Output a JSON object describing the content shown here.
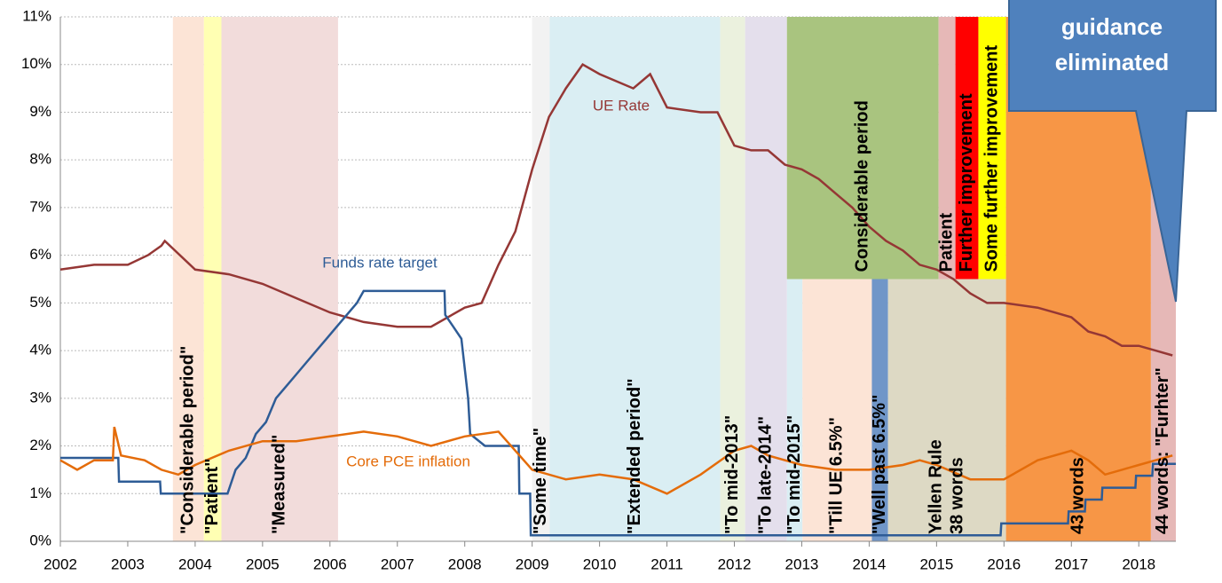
{
  "chart_data": {
    "type": "line",
    "xlim": [
      2002,
      2018.55
    ],
    "xticks": [
      2002,
      2003,
      2004,
      2005,
      2006,
      2007,
      2008,
      2009,
      2010,
      2011,
      2012,
      2013,
      2014,
      2015,
      2016,
      2017,
      2018
    ],
    "ylim": [
      0,
      11
    ],
    "yticks": [
      {
        "value": 0,
        "label": "0%"
      },
      {
        "value": 1,
        "label": "1%"
      },
      {
        "value": 2,
        "label": "2%"
      },
      {
        "value": 3,
        "label": "3%"
      },
      {
        "value": 4,
        "label": "4%"
      },
      {
        "value": 5,
        "label": "5%"
      },
      {
        "value": 6,
        "label": "6%"
      },
      {
        "value": 7,
        "label": "7%"
      },
      {
        "value": 8,
        "label": "8%"
      },
      {
        "value": 9,
        "label": "9%"
      },
      {
        "value": 10,
        "label": "10%"
      },
      {
        "value": 11,
        "label": "11%"
      }
    ],
    "grid": true,
    "series": [
      {
        "name": "UE Rate",
        "color": "#953735",
        "x": [
          2002,
          2002.5,
          2003,
          2003.3,
          2003.5,
          2003.55,
          2004,
          2004.5,
          2005,
          2005.5,
          2006,
          2006.5,
          2007,
          2007.5,
          2008,
          2008.25,
          2008.5,
          2008.75,
          2009,
          2009.25,
          2009.5,
          2009.75,
          2010,
          2010.5,
          2010.75,
          2011,
          2011.5,
          2011.75,
          2012,
          2012.25,
          2012.5,
          2012.75,
          2013,
          2013.25,
          2013.5,
          2013.75,
          2014,
          2014.25,
          2014.5,
          2014.75,
          2015,
          2015.25,
          2015.5,
          2015.75,
          2016,
          2016.5,
          2016.75,
          2017,
          2017.25,
          2017.5,
          2017.75,
          2018,
          2018.25,
          2018.5
        ],
        "values": [
          5.7,
          5.8,
          5.8,
          6.0,
          6.2,
          6.3,
          5.7,
          5.6,
          5.4,
          5.1,
          4.8,
          4.6,
          4.5,
          4.5,
          4.9,
          5.0,
          5.8,
          6.5,
          7.8,
          8.9,
          9.5,
          10.0,
          9.8,
          9.5,
          9.8,
          9.1,
          9.0,
          9.0,
          8.3,
          8.2,
          8.2,
          7.9,
          7.8,
          7.6,
          7.3,
          7.0,
          6.6,
          6.3,
          6.1,
          5.8,
          5.7,
          5.5,
          5.2,
          5.0,
          5.0,
          4.9,
          4.8,
          4.7,
          4.4,
          4.3,
          4.1,
          4.1,
          4.0,
          3.9
        ]
      },
      {
        "name": "Funds rate target",
        "color": "#2e5c96",
        "x": [
          2002,
          2002.86,
          2002.87,
          2003.48,
          2003.49,
          2004.48,
          2004.6,
          2004.75,
          2004.9,
          2005.05,
          2005.2,
          2005.35,
          2005.5,
          2005.65,
          2005.8,
          2005.95,
          2006.1,
          2006.25,
          2006.4,
          2006.5,
          2007.7,
          2007.71,
          2007.83,
          2007.95,
          2008.05,
          2008.08,
          2008.3,
          2008.8,
          2008.81,
          2008.97,
          2008.98,
          2015.95,
          2015.96,
          2016.95,
          2016.96,
          2017.2,
          2017.21,
          2017.45,
          2017.46,
          2017.95,
          2017.96,
          2018.2,
          2018.21,
          2018.55
        ],
        "values": [
          1.75,
          1.75,
          1.25,
          1.25,
          1.0,
          1.0,
          1.5,
          1.75,
          2.25,
          2.5,
          3.0,
          3.25,
          3.5,
          3.75,
          4.0,
          4.25,
          4.5,
          4.75,
          5.0,
          5.25,
          5.25,
          4.75,
          4.5,
          4.25,
          3.0,
          2.25,
          2.0,
          2.0,
          1.0,
          1.0,
          0.125,
          0.125,
          0.375,
          0.375,
          0.625,
          0.625,
          0.875,
          0.875,
          1.125,
          1.125,
          1.375,
          1.375,
          1.625,
          1.625
        ]
      },
      {
        "name": "Core PCE inflation",
        "color": "#e46c0a",
        "x": [
          2002,
          2002.25,
          2002.5,
          2002.78,
          2002.8,
          2002.9,
          2003.25,
          2003.5,
          2003.75,
          2004,
          2004.5,
          2005,
          2005.5,
          2006,
          2006.5,
          2007,
          2007.5,
          2008,
          2008.5,
          2008.75,
          2009,
          2009.5,
          2010,
          2010.5,
          2011,
          2011.5,
          2012,
          2012.25,
          2012.5,
          2013,
          2013.5,
          2014,
          2014.5,
          2014.75,
          2015,
          2015.5,
          2016,
          2016.5,
          2017,
          2017.25,
          2017.5,
          2017.75,
          2018,
          2018.5
        ],
        "values": [
          1.7,
          1.5,
          1.7,
          1.7,
          2.4,
          1.8,
          1.7,
          1.5,
          1.4,
          1.6,
          1.9,
          2.1,
          2.1,
          2.2,
          2.3,
          2.2,
          2.0,
          2.2,
          2.3,
          1.9,
          1.5,
          1.3,
          1.4,
          1.3,
          1.0,
          1.4,
          1.9,
          2.0,
          1.8,
          1.6,
          1.5,
          1.5,
          1.6,
          1.7,
          1.6,
          1.3,
          1.3,
          1.7,
          1.9,
          1.7,
          1.4,
          1.5,
          1.6,
          1.8
        ]
      }
    ],
    "regions": [
      {
        "x": [
          2003.67,
          2004.13
        ],
        "y": [
          0,
          11
        ],
        "color": "#fce4d6",
        "labels": [
          "\"Considerable period\""
        ]
      },
      {
        "x": [
          2004.13,
          2004.39
        ],
        "y": [
          0,
          11
        ],
        "color": "#ffffb3",
        "labels": [
          "\"Patient\""
        ]
      },
      {
        "x": [
          2004.39,
          2006.12
        ],
        "y": [
          0,
          11
        ],
        "color": "#f2dcdb",
        "labels": [
          "\"Measured\""
        ]
      },
      {
        "x": [
          2009.0,
          2009.26
        ],
        "y": [
          0,
          11
        ],
        "color": "#f2f2f2",
        "labels": [
          "\"Some time\""
        ]
      },
      {
        "x": [
          2009.26,
          2011.79
        ],
        "y": [
          0,
          11
        ],
        "color": "#daeef3",
        "labels": [
          "\"Extended period\""
        ]
      },
      {
        "x": [
          2011.79,
          2012.16
        ],
        "y": [
          0,
          11
        ],
        "color": "#ebf1de",
        "labels": [
          "\"To mid-2013\""
        ]
      },
      {
        "x": [
          2012.16,
          2012.78
        ],
        "y": [
          0,
          11
        ],
        "color": "#e4dfec",
        "labels": [
          "\"To late-2014\""
        ]
      },
      {
        "x": [
          2012.78,
          2013.01
        ],
        "y": [
          0,
          5.5
        ],
        "color": "#daeef3",
        "labels": [
          "\"To mid-2015\""
        ]
      },
      {
        "x": [
          2013.01,
          2014.04
        ],
        "y": [
          0,
          5.5
        ],
        "color": "#fce4d6",
        "labels": [
          "\"Till UE 6.5%\""
        ]
      },
      {
        "x": [
          2014.04,
          2014.28
        ],
        "y": [
          0,
          5.5
        ],
        "color": "#7096c8",
        "labels": [
          "\"Well past 6.5%\""
        ]
      },
      {
        "x": [
          2014.28,
          2016.03
        ],
        "y": [
          0,
          5.5
        ],
        "color": "#ddd9c4",
        "labels": [
          "Yellen Rule",
          "38 words"
        ]
      },
      {
        "x": [
          2012.78,
          2015.03
        ],
        "y": [
          5.5,
          11
        ],
        "color": "#a9c47f",
        "labels": [
          "Considerable period"
        ]
      },
      {
        "x": [
          2015.03,
          2015.28
        ],
        "y": [
          5.5,
          11
        ],
        "color": "#e6b8b7",
        "labels": [
          "Patient"
        ]
      },
      {
        "x": [
          2015.28,
          2015.62
        ],
        "y": [
          5.5,
          11
        ],
        "color": "#ff0000",
        "labels": [
          "Further improvement"
        ]
      },
      {
        "x": [
          2015.62,
          2016.03
        ],
        "y": [
          5.5,
          11
        ],
        "color": "#ffff00",
        "labels": [
          "Some further improvement"
        ]
      },
      {
        "x": [
          2016.03,
          2018.18
        ],
        "y": [
          0,
          11
        ],
        "color": "#f79646",
        "labels": [
          "43 words"
        ]
      },
      {
        "x": [
          2018.18,
          2018.55
        ],
        "y": [
          0,
          11
        ],
        "color": "#e6b8b7",
        "labels": [
          "44 words: \"Furhter\""
        ]
      }
    ],
    "callout": {
      "lines": [
        "guidance",
        "eliminated"
      ],
      "color": "#4f81bd"
    }
  }
}
